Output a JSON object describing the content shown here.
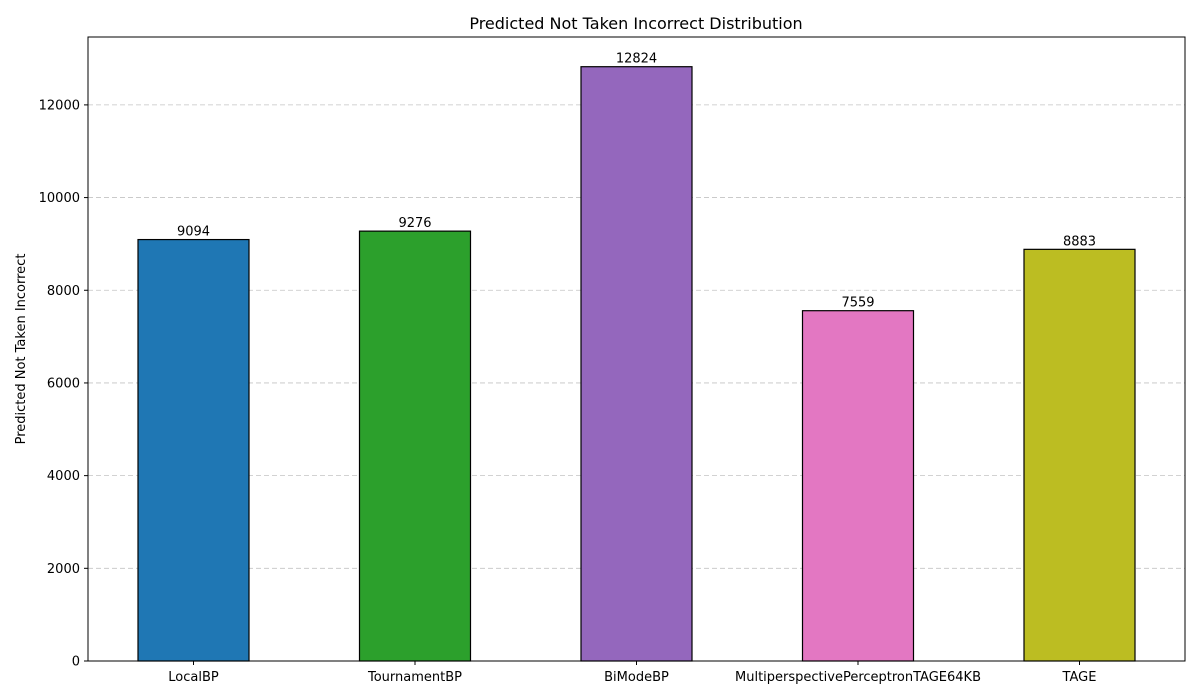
{
  "chart_data": {
    "type": "bar",
    "title": "Predicted Not Taken Incorrect Distribution",
    "xlabel": "",
    "ylabel": "Predicted Not Taken Incorrect",
    "categories": [
      "LocalBP",
      "TournamentBP",
      "BiModeBP",
      "MultiperspectivePerceptronTAGE64KB",
      "TAGE"
    ],
    "values": [
      9094,
      9276,
      12824,
      7559,
      8883
    ],
    "data_labels": [
      "9094",
      "9276",
      "12824",
      "7559",
      "8883"
    ],
    "colors": [
      "#1f77b4",
      "#2ca02c",
      "#9467bd",
      "#e377c2",
      "#bcbd22"
    ],
    "ylim": [
      0,
      13465
    ],
    "yticks": [
      0,
      2000,
      4000,
      6000,
      8000,
      10000,
      12000
    ],
    "ytick_labels": [
      "0",
      "2000",
      "4000",
      "6000",
      "8000",
      "10000",
      "12000"
    ],
    "grid": "y-dashed",
    "legend": "none"
  }
}
